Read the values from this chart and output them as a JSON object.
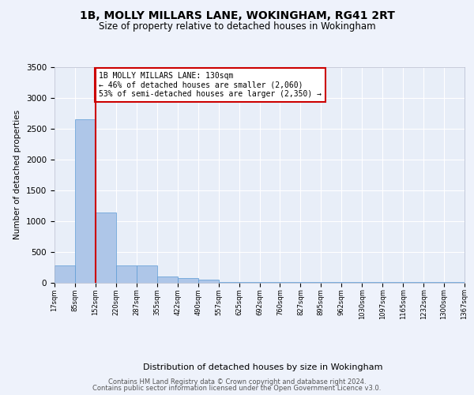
{
  "title_line1": "1B, MOLLY MILLARS LANE, WOKINGHAM, RG41 2RT",
  "title_line2": "Size of property relative to detached houses in Wokingham",
  "xlabel": "Distribution of detached houses by size in Wokingham",
  "ylabel": "Number of detached properties",
  "bar_values": [
    270,
    2650,
    1140,
    280,
    275,
    95,
    65,
    40,
    5,
    2,
    1,
    1,
    1,
    1,
    1,
    1,
    1,
    1,
    1,
    1
  ],
  "bar_labels": [
    "17sqm",
    "85sqm",
    "152sqm",
    "220sqm",
    "287sqm",
    "355sqm",
    "422sqm",
    "490sqm",
    "557sqm",
    "625sqm",
    "692sqm",
    "760sqm",
    "827sqm",
    "895sqm",
    "962sqm",
    "1030sqm",
    "1097sqm",
    "1165sqm",
    "1232sqm",
    "1300sqm",
    "1367sqm"
  ],
  "bar_color": "#aec6e8",
  "bar_edge_color": "#5b9bd5",
  "property_label": "1B MOLLY MILLARS LANE: 130sqm",
  "pct_smaller": 46,
  "n_smaller": 2060,
  "pct_larger_semi": 53,
  "n_larger_semi": 2350,
  "annotation_box_color": "#cc0000",
  "background_color": "#eef2fb",
  "plot_bg_color": "#e8eef8",
  "grid_color": "#ffffff",
  "ylim": [
    0,
    3500
  ],
  "yticks": [
    0,
    500,
    1000,
    1500,
    2000,
    2500,
    3000,
    3500
  ],
  "footer_line1": "Contains HM Land Registry data © Crown copyright and database right 2024.",
  "footer_line2": "Contains public sector information licensed under the Open Government Licence v3.0."
}
